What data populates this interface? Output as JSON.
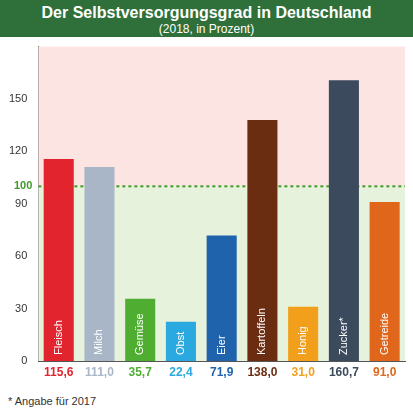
{
  "chart_data": {
    "type": "bar",
    "title": "Der Selbstversorgungsgrad in Deutschland",
    "subtitle": "(2018, in Prozent)",
    "categories": [
      "Fleisch",
      "Milch",
      "Gemüse",
      "Obst",
      "Eier",
      "Kartoffeln",
      "Honig",
      "Zucker*",
      "Getreide"
    ],
    "values": [
      115.6,
      111.0,
      35.7,
      22.4,
      71.9,
      138.0,
      31.0,
      160.7,
      91.0
    ],
    "value_labels": [
      "115,6",
      "111,0",
      "35,7",
      "22,4",
      "71,9",
      "138,0",
      "31,0",
      "160,7",
      "91,0"
    ],
    "colors": [
      "#e2242f",
      "#a9b6c8",
      "#4fae32",
      "#2aa8e0",
      "#1f63ad",
      "#6b2d12",
      "#f2a01c",
      "#3b4a5c",
      "#e0661c"
    ],
    "ylim": [
      0,
      180
    ],
    "yticks": [
      0,
      30,
      60,
      90,
      120,
      150
    ],
    "grid": false,
    "data_labels": true,
    "tick_labels": "y",
    "reference_line": {
      "value": 100,
      "label": "100"
    },
    "footnote": "* Angabe für 2017"
  }
}
